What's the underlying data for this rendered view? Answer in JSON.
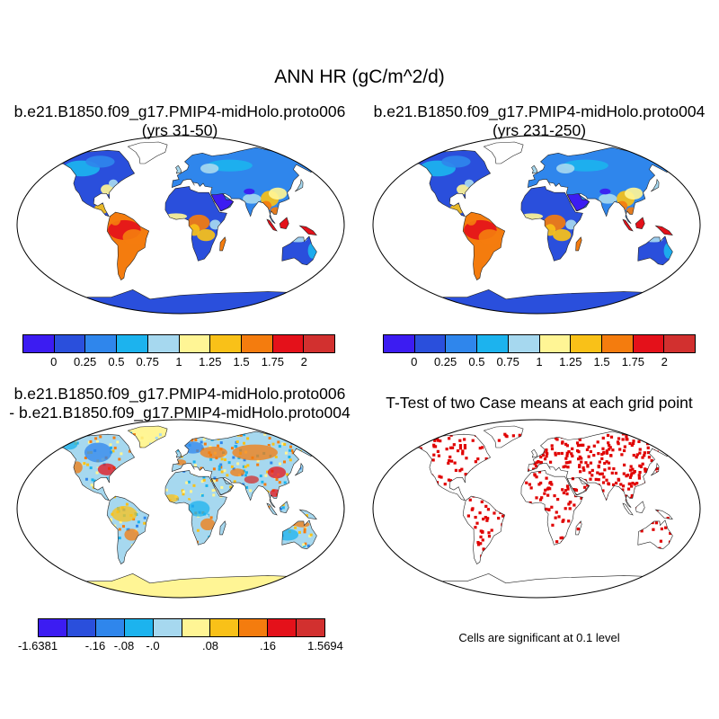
{
  "figure": {
    "title": "ANN HR (gC/m^2/d)",
    "panels": [
      {
        "id": "case1",
        "title_line1": "b.e21.B1850.f09_g17.PMIP4-midHolo.proto006",
        "title_line2": "(yrs 31-50)",
        "colorbar": "cb1"
      },
      {
        "id": "case2",
        "title_line1": "b.e21.B1850.f09_g17.PMIP4-midHolo.proto004",
        "title_line2": "(yrs 231-250)",
        "colorbar": "cb1"
      },
      {
        "id": "diff",
        "title_line1": "b.e21.B1850.f09_g17.PMIP4-midHolo.proto006",
        "title_line2": "- b.e21.B1850.f09_g17.PMIP4-midHolo.proto004",
        "colorbar": "cb2"
      },
      {
        "id": "ttest",
        "title_line1": "T-Test of two Case means at each grid point",
        "title_line2": "",
        "colorbar": ""
      }
    ],
    "colorbars": {
      "cb1": {
        "colors": [
          "#3c1cf2",
          "#2a4fdc",
          "#2f86ec",
          "#1cb3ee",
          "#a6d8ef",
          "#fff595",
          "#f9c118",
          "#f47c0e",
          "#e4111a",
          "#d2302f"
        ],
        "labels": [
          "0",
          "0.25",
          "0.5",
          "0.75",
          "1",
          "1.25",
          "1.5",
          "1.75",
          "2"
        ]
      },
      "cb2": {
        "colors": [
          "#3c1cf2",
          "#2a4fdc",
          "#2f86ec",
          "#1cb3ee",
          "#a6d8ef",
          "#fff595",
          "#f9c118",
          "#f47c0e",
          "#e4111a",
          "#d2302f"
        ],
        "labels": [
          "-1.6381",
          "-.16",
          "-.08",
          "-.0",
          ".08",
          ".16",
          "1.5694"
        ],
        "label_boundaries": [
          0,
          2,
          3,
          4,
          6,
          8,
          10
        ]
      }
    },
    "significance_note": "Cells are significant at 0.1 level",
    "significance_color": "#e00000"
  }
}
